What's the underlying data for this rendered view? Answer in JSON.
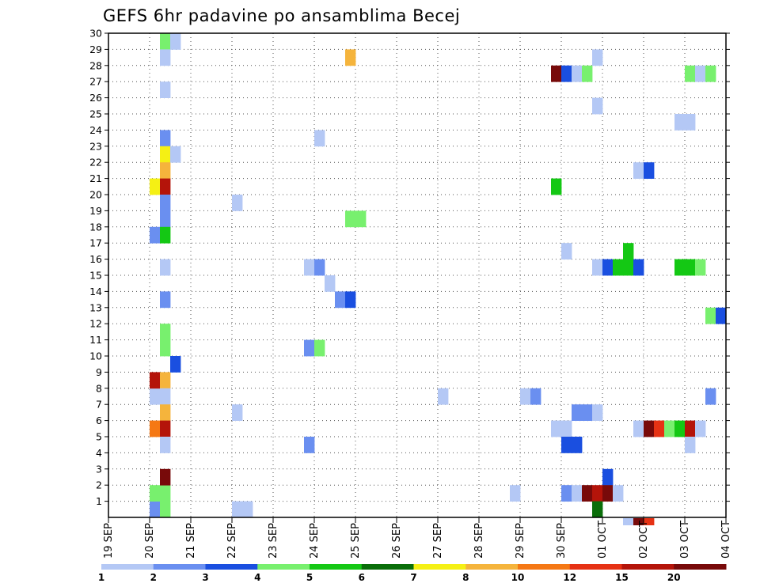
{
  "chart_data": {
    "type": "heatmap",
    "title": "GEFS 6hr padavine po ansamblima Becej",
    "xlabel": "",
    "ylabel": "",
    "x_ticks": [
      "19 SEP",
      "20 SEP",
      "21 SEP",
      "22 SEP",
      "23 SEP",
      "24 SEP",
      "25 SEP",
      "26 SEP",
      "27 SEP",
      "28 SEP",
      "29 SEP",
      "30 SEP",
      "01 OCT",
      "02 OCT",
      "03 OCT",
      "04 OCT"
    ],
    "x_unit": "6-hour step from 19 SEP 00Z",
    "xlim": [
      0,
      60
    ],
    "y_ticks": [
      1,
      2,
      3,
      4,
      5,
      6,
      7,
      8,
      9,
      10,
      11,
      12,
      13,
      14,
      15,
      16,
      17,
      18,
      19,
      20,
      21,
      22,
      23,
      24,
      25,
      26,
      27,
      28,
      29,
      30
    ],
    "ylim": [
      0,
      30
    ],
    "grid": true,
    "colorbar": {
      "labels": [
        "1",
        "2",
        "3",
        "4",
        "5",
        "6",
        "7",
        "8",
        "10",
        "12",
        "15",
        "20"
      ],
      "colors": [
        "#b4c8f5",
        "#6a8ff0",
        "#1a4fe0",
        "#78f06e",
        "#14c814",
        "#0a6e0a",
        "#f5f014",
        "#f5b43c",
        "#f57814",
        "#e63214",
        "#b4140a",
        "#780a0a"
      ]
    },
    "cells": [
      [
        5,
        1,
        1
      ],
      [
        5,
        2,
        3
      ],
      [
        5,
        18,
        1
      ],
      [
        5,
        21,
        6
      ],
      [
        5,
        6,
        8
      ],
      [
        5,
        8,
        0
      ],
      [
        5,
        9,
        10
      ],
      [
        6,
        1,
        3
      ],
      [
        6,
        2,
        3
      ],
      [
        6,
        30,
        3
      ],
      [
        6,
        29,
        0
      ],
      [
        6,
        27,
        0
      ],
      [
        6,
        24,
        1
      ],
      [
        6,
        23,
        6
      ],
      [
        6,
        22,
        7
      ],
      [
        6,
        21,
        10
      ],
      [
        6,
        20,
        1
      ],
      [
        6,
        19,
        1
      ],
      [
        6,
        18,
        4
      ],
      [
        6,
        16,
        0
      ],
      [
        6,
        14,
        1
      ],
      [
        6,
        12,
        3
      ],
      [
        6,
        11,
        3
      ],
      [
        6,
        9,
        7
      ],
      [
        6,
        8,
        0
      ],
      [
        6,
        7,
        7
      ],
      [
        6,
        6,
        10
      ],
      [
        6,
        5,
        0
      ],
      [
        6,
        3,
        11
      ],
      [
        7,
        30,
        0
      ],
      [
        7,
        23,
        0
      ],
      [
        7,
        10,
        2
      ],
      [
        13,
        20,
        0
      ],
      [
        13,
        7,
        0
      ],
      [
        13,
        1,
        0
      ],
      [
        14,
        1,
        0
      ],
      [
        20,
        16,
        0
      ],
      [
        20,
        11,
        1
      ],
      [
        20,
        5,
        1
      ],
      [
        21,
        24,
        0
      ],
      [
        21,
        16,
        1
      ],
      [
        21,
        11,
        3
      ],
      [
        22,
        15,
        0
      ],
      [
        23,
        14,
        1
      ],
      [
        24,
        29,
        7
      ],
      [
        24,
        19,
        3
      ],
      [
        24,
        14,
        2
      ],
      [
        25,
        19,
        3
      ],
      [
        33,
        8,
        0
      ],
      [
        40,
        2,
        0
      ],
      [
        41,
        8,
        0
      ],
      [
        42,
        8,
        1
      ],
      [
        44,
        28,
        11
      ],
      [
        44,
        21,
        4
      ],
      [
        44,
        6,
        0
      ],
      [
        45,
        28,
        2
      ],
      [
        45,
        17,
        0
      ],
      [
        45,
        6,
        0
      ],
      [
        45,
        5,
        2
      ],
      [
        45,
        2,
        1
      ],
      [
        46,
        28,
        0
      ],
      [
        46,
        7,
        1
      ],
      [
        46,
        5,
        2
      ],
      [
        46,
        2,
        0
      ],
      [
        47,
        28,
        3
      ],
      [
        47,
        7,
        1
      ],
      [
        47,
        2,
        11
      ],
      [
        48,
        29,
        0
      ],
      [
        48,
        26,
        0
      ],
      [
        48,
        16,
        0
      ],
      [
        48,
        7,
        0
      ],
      [
        48,
        2,
        10
      ],
      [
        48,
        1,
        5
      ],
      [
        49,
        16,
        2
      ],
      [
        49,
        3,
        2
      ],
      [
        49,
        2,
        11
      ],
      [
        50,
        16,
        4
      ],
      [
        50,
        2,
        0
      ],
      [
        51,
        17,
        4
      ],
      [
        51,
        16,
        4
      ],
      [
        52,
        22,
        0
      ],
      [
        52,
        16,
        2
      ],
      [
        52,
        6,
        0
      ],
      [
        53,
        22,
        2
      ],
      [
        53,
        6,
        11
      ],
      [
        54,
        6,
        9
      ],
      [
        55,
        6,
        3
      ],
      [
        56,
        25,
        0
      ],
      [
        56,
        16,
        4
      ],
      [
        56,
        6,
        4
      ],
      [
        57,
        25,
        0
      ],
      [
        57,
        28,
        3
      ],
      [
        57,
        16,
        4
      ],
      [
        57,
        6,
        10
      ],
      [
        57,
        5,
        0
      ],
      [
        58,
        28,
        0
      ],
      [
        58,
        16,
        3
      ],
      [
        58,
        6,
        0
      ],
      [
        59,
        28,
        3
      ],
      [
        59,
        13,
        3
      ],
      [
        59,
        8,
        1
      ],
      [
        60,
        13,
        2
      ]
    ],
    "below_axis_cells": [
      [
        51,
        0
      ],
      [
        52,
        11
      ],
      [
        53,
        9
      ]
    ]
  }
}
